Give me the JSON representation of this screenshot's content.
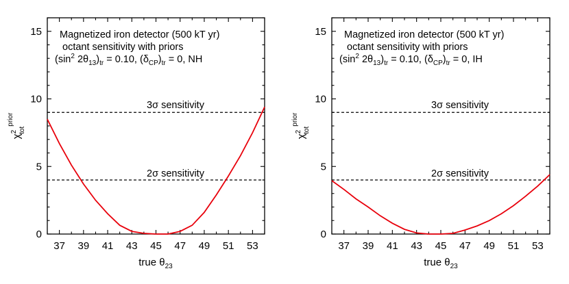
{
  "chart_data": [
    {
      "type": "line",
      "xlabel": "true θ23",
      "ylabel": "χ2tot prior",
      "xlim": [
        36,
        54
      ],
      "ylim": [
        0,
        16
      ],
      "xticks": [
        37,
        39,
        41,
        43,
        45,
        47,
        49,
        51,
        53
      ],
      "yticks": [
        0,
        5,
        10,
        15
      ],
      "annotation": [
        "Magnetized iron detector (500 kT yr)",
        "octant sensitivity with priors",
        "(sin2 2θ13)tr = 0.10, (δCP)tr = 0, NH"
      ],
      "reference_lines": [
        {
          "label": "3σ sensitivity",
          "y": 9
        },
        {
          "label": "2σ sensitivity",
          "y": 4
        }
      ],
      "line_color": "#e8000b",
      "series": [
        {
          "x": [
            36,
            37,
            38,
            39,
            40,
            41,
            42,
            43,
            44,
            45,
            46,
            47,
            48,
            49,
            50,
            51,
            52,
            53,
            54
          ],
          "values": [
            8.5,
            6.7,
            5.1,
            3.7,
            2.5,
            1.5,
            0.65,
            0.2,
            0.05,
            0,
            0,
            0.2,
            0.65,
            1.6,
            2.9,
            4.3,
            5.8,
            7.5,
            9.4
          ]
        }
      ]
    },
    {
      "type": "line",
      "xlabel": "true θ23",
      "ylabel": "χ2tot prior",
      "xlim": [
        36,
        54
      ],
      "ylim": [
        0,
        16
      ],
      "xticks": [
        37,
        39,
        41,
        43,
        45,
        47,
        49,
        51,
        53
      ],
      "yticks": [
        0,
        5,
        10,
        15
      ],
      "annotation": [
        "Magnetized iron detector (500 kT yr)",
        "octant sensitivity with priors",
        "(sin2 2θ13)tr = 0.10, (δCP)tr = 0, IH"
      ],
      "reference_lines": [
        {
          "label": "3σ sensitivity",
          "y": 9
        },
        {
          "label": "2σ sensitivity",
          "y": 4
        }
      ],
      "line_color": "#e8000b",
      "series": [
        {
          "x": [
            36,
            37,
            38,
            39,
            40,
            41,
            42,
            43,
            44,
            45,
            46,
            47,
            48,
            49,
            50,
            51,
            52,
            53,
            54
          ],
          "values": [
            3.95,
            3.3,
            2.6,
            2.0,
            1.35,
            0.8,
            0.35,
            0.08,
            0,
            0,
            0.05,
            0.3,
            0.6,
            1.0,
            1.5,
            2.1,
            2.8,
            3.55,
            4.4
          ]
        }
      ]
    }
  ],
  "labels": {
    "annotation_line1": "Magnetized iron detector (500 kT yr)",
    "annotation_line2": "octant sensitivity with priors",
    "ann3_open": "(sin",
    "ann3_sup2": "2",
    "ann3_mid": " 2θ",
    "ann3_sub13": "13",
    "ann3_close1": ")",
    "ann3_subtr1": "tr",
    "ann3_eq1": " = 0.10, (δ",
    "ann3_subcp": "CP",
    "ann3_close2": ")",
    "ann3_subtr2": "tr",
    "ann3_eq2_nh": " = 0, NH",
    "ann3_eq2_ih": " = 0, IH",
    "sigma3": "3σ sensitivity",
    "sigma2": "2σ sensitivity",
    "xlabel_main": "true θ",
    "xlabel_sub": "23",
    "ylabel_main": "χ",
    "ylabel_sup": "2",
    "ylabel_sub": "tot",
    "ylabel_prior": "prior"
  }
}
